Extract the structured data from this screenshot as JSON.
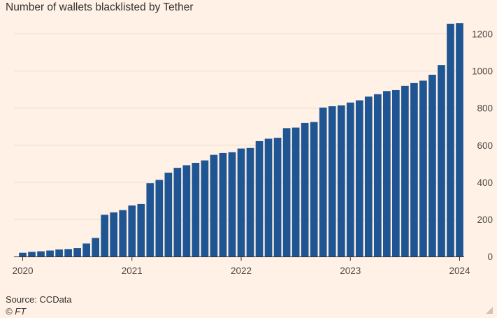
{
  "chart_data": {
    "type": "bar",
    "title": "Number of wallets blacklisted by Tether",
    "xlabel": "",
    "ylabel": "",
    "ylim": [
      0,
      1300
    ],
    "yticks": [
      0,
      200,
      400,
      600,
      800,
      1000,
      1200
    ],
    "xticks": [
      "2020",
      "2021",
      "2022",
      "2023",
      "2024"
    ],
    "grid": true,
    "color": "#1f5593",
    "categories": [
      "2020-01",
      "2020-02",
      "2020-03",
      "2020-04",
      "2020-05",
      "2020-06",
      "2020-07",
      "2020-08",
      "2020-09",
      "2020-10",
      "2020-11",
      "2020-12",
      "2021-01",
      "2021-02",
      "2021-03",
      "2021-04",
      "2021-05",
      "2021-06",
      "2021-07",
      "2021-08",
      "2021-09",
      "2021-10",
      "2021-11",
      "2021-12",
      "2022-01",
      "2022-02",
      "2022-03",
      "2022-04",
      "2022-05",
      "2022-06",
      "2022-07",
      "2022-08",
      "2022-09",
      "2022-10",
      "2022-11",
      "2022-12",
      "2023-01",
      "2023-02",
      "2023-03",
      "2023-04",
      "2023-05",
      "2023-06",
      "2023-07",
      "2023-08",
      "2023-09",
      "2023-10",
      "2023-11",
      "2023-12",
      "2024-01"
    ],
    "values": [
      20,
      25,
      28,
      32,
      38,
      40,
      45,
      70,
      100,
      225,
      238,
      250,
      275,
      283,
      395,
      413,
      452,
      478,
      492,
      505,
      518,
      548,
      558,
      562,
      582,
      585,
      622,
      635,
      640,
      692,
      695,
      720,
      725,
      803,
      810,
      815,
      830,
      842,
      862,
      875,
      892,
      897,
      920,
      935,
      948,
      980,
      1032,
      1255,
      1258
    ]
  },
  "footer": {
    "source": "Source: CCData",
    "credit": "© FT"
  }
}
